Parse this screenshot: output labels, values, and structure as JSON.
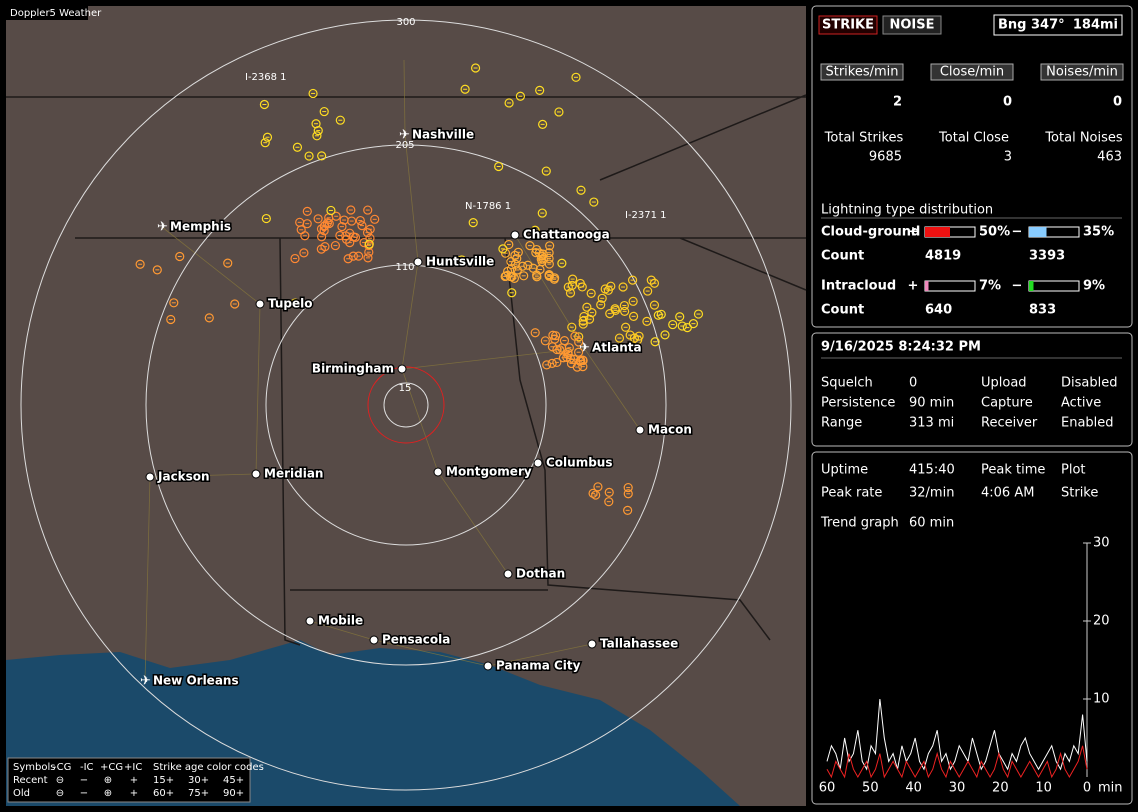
{
  "map": {
    "title": "Doppler5 Weather",
    "range_labels": [
      "300",
      "205",
      "110",
      "15"
    ],
    "sensors": [
      "I-2368 1",
      "N-1786 1",
      "I-2371 1"
    ],
    "cities": [
      {
        "name": "Nashville",
        "airport": true
      },
      {
        "name": "Memphis",
        "airport": true
      },
      {
        "name": "Chattanooga",
        "airport": false
      },
      {
        "name": "Huntsville",
        "airport": false
      },
      {
        "name": "Tupelo",
        "airport": false
      },
      {
        "name": "Birmingham",
        "airport": false
      },
      {
        "name": "Atlanta",
        "airport": true
      },
      {
        "name": "Macon",
        "airport": false
      },
      {
        "name": "Jackson",
        "airport": false
      },
      {
        "name": "Meridian",
        "airport": false
      },
      {
        "name": "Montgomery",
        "airport": false
      },
      {
        "name": "Columbus",
        "airport": false
      },
      {
        "name": "Dothan",
        "airport": false
      },
      {
        "name": "Mobile",
        "airport": false
      },
      {
        "name": "Pensacola",
        "airport": false
      },
      {
        "name": "Tallahassee",
        "airport": false
      },
      {
        "name": "Panama City",
        "airport": false
      },
      {
        "name": "New Orleans",
        "airport": true
      }
    ],
    "legend": {
      "symbols": "Symbols",
      "types": [
        "-CG",
        "-IC",
        "+CG",
        "+IC"
      ],
      "age_title": "Strike age color codes",
      "rows": [
        "Recent",
        "Old"
      ],
      "ages": [
        [
          "15+",
          "30+",
          "45+"
        ],
        [
          "60+",
          "75+",
          "90+"
        ]
      ],
      "age_colors": [
        [
          "#ffee44",
          "#ffaa33",
          "#ff8833"
        ],
        [
          "#ff9933",
          "#ff7733",
          "#ff5533"
        ]
      ]
    }
  },
  "panel": {
    "buttons": [
      "STRIKE",
      "NOISE"
    ],
    "bearing": "Bng 347°",
    "distance": "184mi",
    "rates": [
      {
        "label": "Strikes/min",
        "value": 2
      },
      {
        "label": "Close/min",
        "value": 0
      },
      {
        "label": "Noises/min",
        "value": 0
      }
    ],
    "totals": [
      {
        "label": "Total Strikes",
        "value": 9685
      },
      {
        "label": "Total Close",
        "value": 3
      },
      {
        "label": "Total Noises",
        "value": 463
      }
    ],
    "distribution": {
      "title": "Lightning type distribution",
      "count_label": "Count",
      "plus": "+",
      "minus": "−",
      "rows": [
        {
          "label": "Cloud-ground",
          "values": [
            50,
            35
          ],
          "value_labels": [
            "50%",
            "35%"
          ],
          "colors": [
            "#ee1111",
            "#88ccff"
          ],
          "counts": [
            4819,
            3393
          ]
        },
        {
          "label": "Intracloud",
          "values": [
            7,
            9
          ],
          "value_labels": [
            "7%",
            "9%"
          ],
          "colors": [
            "#ee88bb",
            "#22dd22"
          ],
          "counts": [
            640,
            833
          ]
        }
      ]
    },
    "datetime": "9/16/2025 8:24:32 PM",
    "settings": [
      [
        "Squelch",
        "0",
        "Upload",
        "Disabled"
      ],
      [
        "Persistence",
        "90 min",
        "Capture",
        "Active"
      ],
      [
        "Range",
        "313 mi",
        "Receiver",
        "Enabled"
      ]
    ],
    "stats": [
      [
        "Uptime",
        "415:40",
        "Peak time",
        "Plot"
      ],
      [
        "Peak rate",
        "32/min",
        "4:06 AM",
        "Strike"
      ]
    ],
    "trend": {
      "label": "Trend graph",
      "window": "60 min",
      "x_unit": "min",
      "ylim": [
        0,
        30
      ],
      "yticks": [
        10,
        20,
        30
      ],
      "xlim": [
        60,
        0
      ],
      "xticks": [
        60,
        50,
        40,
        30,
        20,
        10,
        0
      ],
      "series": [
        {
          "color": "#ffffff",
          "values": [
            2,
            4,
            3,
            1,
            5,
            2,
            3,
            6,
            2,
            1,
            4,
            3,
            10,
            5,
            2,
            3,
            1,
            4,
            2,
            3,
            5,
            2,
            1,
            3,
            4,
            6,
            2,
            3,
            1,
            2,
            4,
            3,
            2,
            5,
            3,
            1,
            2,
            4,
            6,
            3,
            2,
            1,
            3,
            2,
            4,
            5,
            3,
            2,
            1,
            2,
            3,
            4,
            2,
            1,
            3,
            2,
            4,
            3,
            8,
            2
          ]
        },
        {
          "color": "#ee2222",
          "values": [
            1,
            0,
            2,
            1,
            0,
            3,
            1,
            0,
            1,
            2,
            0,
            1,
            3,
            0,
            1,
            2,
            1,
            0,
            2,
            1,
            0,
            1,
            2,
            0,
            1,
            3,
            1,
            0,
            2,
            1,
            0,
            1,
            2,
            1,
            0,
            2,
            1,
            0,
            1,
            3,
            1,
            0,
            2,
            1,
            0,
            1,
            2,
            1,
            0,
            1,
            2,
            0,
            1,
            3,
            1,
            0,
            1,
            2,
            4,
            1
          ]
        }
      ]
    }
  }
}
